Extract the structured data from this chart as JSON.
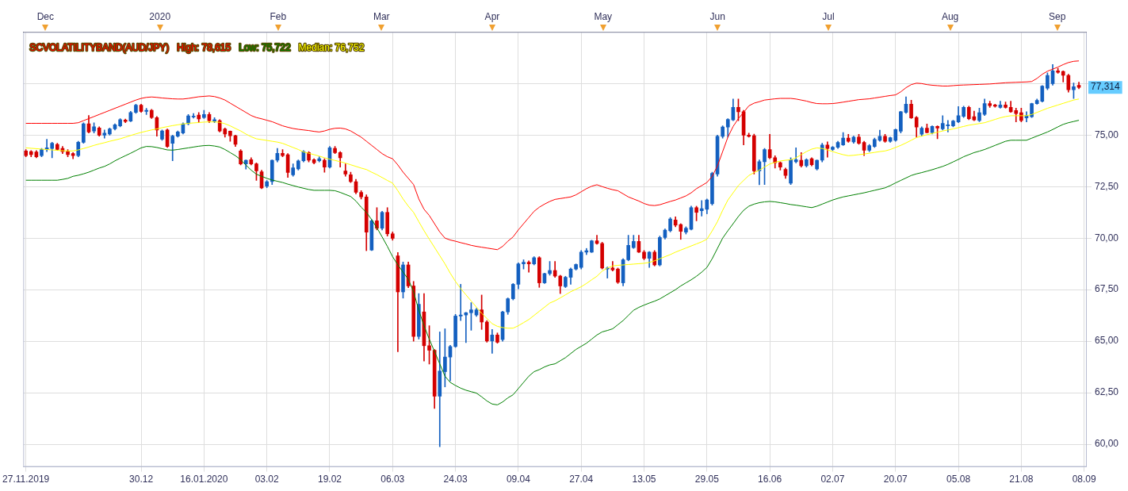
{
  "chart_data": {
    "type": "candlestick",
    "title": "SCVOLATILITYBAND(AUD/JPY)",
    "legend": "top left",
    "grid": true,
    "marker": "none",
    "categories": [
      "27.11.2019",
      null,
      null,
      null,
      null,
      null,
      null,
      null,
      null,
      null,
      null,
      null,
      null,
      null,
      null,
      null,
      null,
      null,
      null,
      null,
      null,
      null,
      "30.12",
      null,
      null,
      null,
      null,
      null,
      null,
      null,
      null,
      null,
      null,
      null,
      "16.01.2020",
      null,
      null,
      null,
      null,
      null,
      null,
      null,
      null,
      null,
      null,
      null,
      "03.02",
      null,
      null,
      null,
      null,
      null,
      null,
      null,
      null,
      null,
      null,
      null,
      "19.02",
      null,
      null,
      null,
      null,
      null,
      null,
      null,
      null,
      null,
      null,
      null,
      "06.03",
      null,
      null,
      null,
      null,
      null,
      null,
      null,
      null,
      null,
      null,
      null,
      "24.03",
      null,
      null,
      null,
      null,
      null,
      null,
      null,
      null,
      null,
      null,
      null,
      "09.04",
      null,
      null,
      null,
      null,
      null,
      null,
      null,
      null,
      null,
      null,
      null,
      "27.04",
      null,
      null,
      null,
      null,
      null,
      null,
      null,
      null,
      null,
      null,
      null,
      "13.05",
      null,
      null,
      null,
      null,
      null,
      null,
      null,
      null,
      null,
      null,
      null,
      "29.05",
      null,
      null,
      null,
      null,
      null,
      null,
      null,
      null,
      null,
      null,
      null,
      "16.06",
      null,
      null,
      null,
      null,
      null,
      null,
      null,
      null,
      null,
      null,
      null,
      "02.07",
      null,
      null,
      null,
      null,
      null,
      null,
      null,
      null,
      null,
      null,
      null,
      "20.07",
      null,
      null,
      null,
      null,
      null,
      null,
      null,
      null,
      null,
      null,
      null,
      "05.08",
      null,
      null,
      null,
      null,
      null,
      null,
      null,
      null,
      null,
      null,
      null,
      "21.08",
      null,
      null,
      null,
      null,
      null,
      null,
      null,
      null,
      null,
      null,
      null,
      "08.09"
    ],
    "ohlc": [
      [
        74.23,
        74.3,
        73.95,
        74.0
      ],
      [
        74.2,
        74.25,
        73.95,
        74.05
      ],
      [
        74.18,
        74.25,
        73.9,
        73.95
      ],
      [
        74.0,
        74.35,
        73.95,
        74.3
      ],
      [
        74.3,
        74.8,
        74.2,
        74.38
      ],
      [
        74.35,
        74.65,
        73.9,
        74.6
      ],
      [
        74.55,
        74.6,
        74.25,
        74.3
      ],
      [
        74.35,
        74.45,
        74.1,
        74.2
      ],
      [
        74.2,
        74.3,
        73.95,
        74.05
      ],
      [
        74.1,
        74.15,
        73.85,
        74.0
      ],
      [
        74.0,
        74.7,
        73.95,
        74.65
      ],
      [
        74.65,
        75.6,
        74.6,
        75.55
      ],
      [
        75.55,
        75.95,
        75.1,
        75.15
      ],
      [
        75.2,
        75.6,
        75.1,
        75.4
      ],
      [
        75.35,
        75.4,
        74.95,
        75.0
      ],
      [
        75.0,
        75.25,
        74.85,
        75.1
      ],
      [
        75.05,
        75.35,
        75.0,
        75.3
      ],
      [
        75.3,
        75.55,
        75.25,
        75.5
      ],
      [
        75.45,
        75.8,
        75.4,
        75.75
      ],
      [
        75.73,
        75.78,
        75.6,
        75.66
      ],
      [
        75.68,
        76.15,
        75.65,
        76.1
      ],
      [
        76.1,
        76.5,
        76.05,
        76.45
      ],
      [
        76.45,
        76.5,
        76.1,
        76.15
      ],
      [
        76.15,
        76.3,
        76.0,
        76.2
      ],
      [
        76.2,
        76.25,
        75.8,
        75.85
      ],
      [
        75.85,
        75.9,
        74.95,
        75.25
      ],
      [
        74.8,
        75.25,
        74.75,
        75.2
      ],
      [
        75.25,
        75.3,
        74.4,
        74.45
      ],
      [
        74.6,
        75.0,
        73.75,
        74.95
      ],
      [
        74.95,
        75.2,
        74.9,
        75.15
      ],
      [
        75.1,
        75.6,
        75.05,
        75.55
      ],
      [
        75.55,
        76.0,
        75.5,
        75.93
      ],
      [
        75.88,
        76.05,
        75.82,
        75.92
      ],
      [
        75.97,
        76.1,
        75.6,
        75.78
      ],
      [
        75.85,
        76.2,
        75.8,
        76.0
      ],
      [
        76.0,
        76.1,
        75.6,
        75.7
      ],
      [
        75.68,
        75.85,
        75.6,
        75.75
      ],
      [
        75.7,
        75.75,
        75.15,
        75.2
      ],
      [
        75.3,
        75.35,
        74.9,
        75.05
      ],
      [
        75.19,
        75.2,
        74.7,
        74.97
      ],
      [
        74.97,
        75.0,
        74.45,
        74.55
      ],
      [
        74.23,
        74.3,
        73.55,
        73.6
      ],
      [
        73.6,
        73.8,
        73.35,
        73.78
      ],
      [
        73.81,
        73.9,
        73.55,
        73.6
      ],
      [
        73.6,
        73.65,
        72.8,
        73.26
      ],
      [
        73.22,
        73.3,
        72.4,
        72.44
      ],
      [
        72.52,
        72.8,
        72.45,
        72.74
      ],
      [
        72.74,
        73.8,
        72.6,
        73.78
      ],
      [
        73.78,
        74.35,
        73.7,
        74.11
      ],
      [
        74.11,
        74.3,
        73.95,
        74.0
      ],
      [
        74.05,
        74.1,
        72.95,
        73.19
      ],
      [
        73.07,
        73.6,
        73.0,
        73.41
      ],
      [
        73.36,
        73.8,
        73.3,
        73.75
      ],
      [
        73.75,
        74.25,
        73.7,
        74.2
      ],
      [
        74.15,
        74.2,
        73.7,
        73.78
      ],
      [
        73.81,
        73.85,
        73.6,
        73.66
      ],
      [
        73.75,
        73.95,
        73.7,
        73.85
      ],
      [
        73.78,
        73.85,
        73.2,
        73.45
      ],
      [
        73.45,
        74.45,
        73.4,
        74.38
      ],
      [
        74.35,
        74.45,
        74.1,
        74.15
      ],
      [
        74.15,
        74.2,
        73.45,
        73.9
      ],
      [
        73.26,
        73.6,
        73.0,
        73.11
      ],
      [
        73.07,
        73.2,
        72.7,
        72.74
      ],
      [
        72.74,
        72.85,
        72.15,
        72.22
      ],
      [
        72.22,
        72.3,
        71.9,
        72.0
      ],
      [
        72.0,
        72.1,
        69.39,
        70.29
      ],
      [
        69.42,
        70.9,
        69.4,
        70.84
      ],
      [
        70.84,
        71.48,
        70.4,
        70.48
      ],
      [
        70.48,
        71.3,
        70.4,
        71.25
      ],
      [
        71.25,
        71.48,
        70.1,
        70.21
      ],
      [
        70.21,
        70.3,
        69.9,
        69.99
      ],
      [
        69.14,
        69.3,
        64.49,
        67.39
      ],
      [
        67.39,
        68.84,
        67.09,
        68.7
      ],
      [
        68.7,
        68.84,
        67.6,
        67.68
      ],
      [
        67.68,
        67.9,
        65.0,
        65.23
      ],
      [
        65.23,
        67.31,
        65.1,
        66.79
      ],
      [
        66.42,
        67.31,
        64.04,
        64.78
      ],
      [
        64.78,
        65.75,
        63.89,
        64.56
      ],
      [
        64.56,
        64.6,
        61.74,
        62.33
      ],
      [
        62.33,
        65.45,
        59.88,
        63.55
      ],
      [
        63.52,
        65.6,
        62.78,
        64.23
      ],
      [
        64.23,
        64.8,
        63.07,
        64.74
      ],
      [
        64.74,
        66.3,
        64.7,
        66.22
      ],
      [
        66.22,
        67.76,
        66.0,
        66.27
      ],
      [
        66.27,
        66.4,
        64.93,
        66.38
      ],
      [
        66.38,
        66.87,
        65.53,
        66.52
      ],
      [
        66.27,
        66.6,
        66.2,
        66.52
      ],
      [
        66.52,
        67.24,
        65.57,
        65.93
      ],
      [
        65.93,
        66.0,
        64.95,
        65.01
      ],
      [
        65.01,
        65.57,
        64.41,
        65.3
      ],
      [
        65.3,
        65.4,
        64.9,
        64.95
      ],
      [
        65.08,
        66.45,
        65.0,
        66.42
      ],
      [
        66.42,
        67.1,
        66.3,
        67.06
      ],
      [
        67.06,
        67.8,
        67.0,
        67.76
      ],
      [
        67.76,
        68.8,
        67.54,
        68.75
      ],
      [
        68.75,
        68.95,
        68.5,
        68.83
      ],
      [
        68.83,
        68.9,
        68.35,
        68.75
      ],
      [
        68.75,
        69.1,
        68.7,
        69.05
      ],
      [
        69.05,
        69.1,
        67.61,
        67.83
      ],
      [
        67.83,
        68.3,
        67.8,
        68.28
      ],
      [
        68.28,
        68.87,
        68.2,
        68.43
      ],
      [
        68.43,
        68.87,
        68.1,
        68.16
      ],
      [
        68.16,
        68.2,
        67.31,
        67.68
      ],
      [
        67.65,
        68.15,
        67.6,
        68.1
      ],
      [
        68.1,
        68.55,
        67.76,
        68.5
      ],
      [
        68.5,
        68.75,
        68.45,
        68.72
      ],
      [
        68.58,
        69.4,
        68.5,
        69.32
      ],
      [
        69.32,
        69.5,
        69.2,
        69.39
      ],
      [
        69.32,
        69.9,
        69.3,
        69.87
      ],
      [
        69.87,
        70.14,
        69.7,
        69.74
      ],
      [
        69.74,
        69.8,
        68.5,
        68.55
      ],
      [
        68.5,
        68.6,
        68.06,
        68.55
      ],
      [
        68.55,
        68.87,
        68.4,
        68.46
      ],
      [
        68.5,
        68.55,
        67.8,
        67.86
      ],
      [
        67.83,
        69.0,
        67.68,
        68.95
      ],
      [
        68.95,
        70.14,
        68.9,
        69.65
      ],
      [
        69.54,
        70.14,
        69.5,
        69.84
      ],
      [
        69.84,
        70.14,
        69.3,
        69.32
      ],
      [
        69.32,
        69.4,
        68.95,
        69.02
      ],
      [
        69.02,
        69.35,
        68.58,
        69.32
      ],
      [
        69.32,
        69.4,
        68.65,
        68.7
      ],
      [
        68.7,
        70.1,
        68.65,
        70.03
      ],
      [
        70.03,
        70.45,
        69.95,
        70.39
      ],
      [
        70.36,
        71.0,
        70.3,
        70.93
      ],
      [
        70.88,
        71.03,
        70.55,
        70.63
      ],
      [
        70.66,
        70.7,
        69.94,
        70.33
      ],
      [
        70.29,
        70.55,
        70.2,
        70.48
      ],
      [
        70.43,
        71.55,
        70.4,
        71.48
      ],
      [
        71.48,
        71.55,
        70.84,
        71.25
      ],
      [
        71.33,
        71.82,
        71.07,
        71.43
      ],
      [
        71.4,
        71.9,
        71.18,
        71.85
      ],
      [
        71.67,
        73.2,
        71.6,
        73.14
      ],
      [
        73.11,
        75.0,
        73.0,
        74.94
      ],
      [
        74.94,
        75.45,
        74.85,
        75.39
      ],
      [
        75.39,
        75.8,
        74.9,
        75.76
      ],
      [
        75.74,
        76.75,
        75.7,
        76.35
      ],
      [
        76.35,
        76.75,
        75.7,
        76.13
      ],
      [
        76.13,
        76.2,
        74.52,
        75.0
      ],
      [
        75.0,
        75.1,
        74.9,
        74.94
      ],
      [
        74.97,
        75.05,
        73.11,
        73.26
      ],
      [
        73.26,
        73.8,
        72.59,
        73.71
      ],
      [
        73.71,
        74.35,
        72.6,
        74.3
      ],
      [
        74.3,
        75.04,
        73.85,
        73.9
      ],
      [
        73.9,
        74.0,
        73.4,
        73.66
      ],
      [
        73.66,
        73.7,
        73.3,
        73.45
      ],
      [
        73.33,
        73.4,
        72.9,
        73.04
      ],
      [
        72.67,
        73.9,
        72.6,
        73.81
      ],
      [
        73.71,
        74.38,
        73.65,
        73.81
      ],
      [
        73.78,
        74.15,
        73.45,
        73.51
      ],
      [
        73.51,
        73.85,
        73.45,
        73.81
      ],
      [
        73.85,
        73.9,
        73.5,
        73.56
      ],
      [
        73.36,
        73.8,
        73.3,
        73.78
      ],
      [
        73.78,
        74.6,
        73.7,
        74.52
      ],
      [
        74.52,
        74.67,
        73.93,
        74.35
      ],
      [
        74.3,
        74.45,
        74.25,
        74.41
      ],
      [
        74.41,
        74.7,
        74.35,
        74.64
      ],
      [
        74.52,
        75.12,
        74.5,
        74.85
      ],
      [
        74.85,
        75.04,
        74.65,
        74.7
      ],
      [
        74.67,
        74.95,
        74.6,
        74.9
      ],
      [
        74.9,
        75.04,
        74.55,
        74.6
      ],
      [
        74.64,
        74.7,
        74.0,
        74.26
      ],
      [
        74.26,
        74.55,
        74.2,
        74.49
      ],
      [
        74.45,
        74.85,
        74.4,
        74.79
      ],
      [
        74.75,
        75.24,
        74.7,
        74.94
      ],
      [
        74.94,
        75.04,
        74.65,
        74.7
      ],
      [
        74.7,
        74.9,
        74.65,
        74.87
      ],
      [
        74.75,
        75.3,
        74.7,
        75.27
      ],
      [
        75.19,
        76.15,
        75.1,
        76.13
      ],
      [
        76.1,
        76.86,
        76.05,
        76.5
      ],
      [
        76.5,
        76.69,
        75.8,
        75.83
      ],
      [
        75.86,
        75.9,
        74.9,
        75.39
      ],
      [
        75.04,
        75.4,
        74.95,
        75.34
      ],
      [
        75.34,
        75.54,
        75.1,
        75.12
      ],
      [
        75.12,
        75.45,
        75.05,
        75.42
      ],
      [
        75.42,
        75.45,
        74.82,
        75.34
      ],
      [
        75.3,
        75.94,
        75.25,
        75.57
      ],
      [
        75.45,
        75.71,
        75.15,
        75.5
      ],
      [
        75.45,
        75.72,
        75.4,
        75.68
      ],
      [
        75.64,
        76.38,
        75.6,
        75.94
      ],
      [
        75.91,
        76.4,
        75.85,
        76.35
      ],
      [
        76.35,
        76.4,
        75.75,
        75.79
      ],
      [
        75.89,
        76.16,
        75.7,
        75.74
      ],
      [
        75.71,
        76.31,
        75.65,
        76.09
      ],
      [
        76.01,
        76.75,
        75.95,
        76.53
      ],
      [
        76.53,
        76.64,
        76.34,
        76.43
      ],
      [
        76.46,
        76.5,
        76.35,
        76.4
      ],
      [
        76.34,
        76.64,
        76.3,
        76.46
      ],
      [
        76.46,
        76.61,
        76.3,
        76.34
      ],
      [
        76.35,
        76.64,
        76.1,
        76.13
      ],
      [
        76.19,
        76.31,
        75.64,
        76.04
      ],
      [
        76.09,
        76.31,
        75.64,
        75.71
      ],
      [
        75.83,
        76.13,
        75.64,
        75.94
      ],
      [
        75.89,
        76.55,
        75.85,
        76.53
      ],
      [
        76.53,
        76.75,
        76.5,
        76.68
      ],
      [
        76.64,
        77.4,
        76.6,
        77.38
      ],
      [
        77.28,
        78.02,
        77.2,
        77.9
      ],
      [
        77.5,
        78.42,
        77.42,
        78.12
      ],
      [
        78.12,
        78.24,
        78.0,
        78.05
      ],
      [
        78.09,
        78.12,
        77.57,
        77.9
      ],
      [
        77.9,
        77.95,
        77.08,
        77.2
      ],
      [
        77.2,
        77.53,
        76.78,
        77.35
      ],
      [
        77.41,
        77.57,
        77.25,
        77.314
      ],
      null
    ],
    "colors": [
      "#d40000",
      "#d40000",
      "#d40000",
      "#1460c0",
      "#1460c0",
      "#1460c0",
      "#d40000",
      "#d40000",
      "#d40000",
      "#d40000",
      "#1460c0",
      "#1460c0",
      "#d40000",
      "#1460c0",
      "#d40000",
      "#1460c0",
      "#1460c0",
      "#1460c0",
      "#1460c0",
      "#d40000",
      "#1460c0",
      "#1460c0",
      "#d40000",
      "#1460c0",
      "#d40000",
      "#d40000",
      "#1460c0",
      "#d40000",
      "#1460c0",
      "#1460c0",
      "#1460c0",
      "#1460c0",
      "#1460c0",
      "#d40000",
      "#1460c0",
      "#d40000",
      "#1460c0",
      "#d40000",
      "#d40000",
      "#d40000",
      "#d40000",
      "#d40000",
      "#1460c0",
      "#d40000",
      "#d40000",
      "#d40000",
      "#1460c0",
      "#1460c0",
      "#1460c0",
      "#d40000",
      "#d40000",
      "#1460c0",
      "#1460c0",
      "#1460c0",
      "#d40000",
      "#d40000",
      "#1460c0",
      "#d40000",
      "#1460c0",
      "#d40000",
      "#d40000",
      "#d40000",
      "#d40000",
      "#d40000",
      "#d40000",
      "#d40000",
      "#1460c0",
      "#d40000",
      "#1460c0",
      "#d40000",
      "#d40000",
      "#d40000",
      "#1460c0",
      "#d40000",
      "#d40000",
      "#1460c0",
      "#d40000",
      "#d40000",
      "#d40000",
      "#1460c0",
      "#1460c0",
      "#1460c0",
      "#1460c0",
      "#1460c0",
      "#1460c0",
      "#1460c0",
      "#1460c0",
      "#d40000",
      "#d40000",
      "#1460c0",
      "#d40000",
      "#1460c0",
      "#1460c0",
      "#1460c0",
      "#1460c0",
      "#1460c0",
      "#d40000",
      "#1460c0",
      "#d40000",
      "#1460c0",
      "#1460c0",
      "#d40000",
      "#d40000",
      "#1460c0",
      "#1460c0",
      "#1460c0",
      "#1460c0",
      "#1460c0",
      "#1460c0",
      "#d40000",
      "#d40000",
      "#1460c0",
      "#d40000",
      "#d40000",
      "#1460c0",
      "#1460c0",
      "#1460c0",
      "#d40000",
      "#d40000",
      "#1460c0",
      "#d40000",
      "#1460c0",
      "#1460c0",
      "#1460c0",
      "#d40000",
      "#d40000",
      "#1460c0",
      "#1460c0",
      "#d40000",
      "#1460c0",
      "#1460c0",
      "#1460c0",
      "#1460c0",
      "#1460c0",
      "#1460c0",
      "#1460c0",
      "#d40000",
      "#d40000",
      "#d40000",
      "#d40000",
      "#1460c0",
      "#1460c0",
      "#d40000",
      "#d40000",
      "#d40000",
      "#d40000",
      "#1460c0",
      "#1460c0",
      "#d40000",
      "#1460c0",
      "#d40000",
      "#1460c0",
      "#1460c0",
      "#d40000",
      "#1460c0",
      "#1460c0",
      "#1460c0",
      "#d40000",
      "#1460c0",
      "#d40000",
      "#d40000",
      "#1460c0",
      "#1460c0",
      "#1460c0",
      "#d40000",
      "#1460c0",
      "#1460c0",
      "#1460c0",
      "#1460c0",
      "#d40000",
      "#d40000",
      "#1460c0",
      "#d40000",
      "#1460c0",
      "#d40000",
      "#1460c0",
      "#1460c0",
      "#1460c0",
      "#1460c0",
      "#1460c0",
      "#d40000",
      "#d40000",
      "#1460c0",
      "#1460c0",
      "#d40000",
      "#d40000",
      "#1460c0",
      "#d40000",
      "#d40000",
      "#d40000",
      "#d40000",
      "#1460c0",
      "#1460c0",
      "#1460c0",
      "#1460c0",
      "#1460c0",
      "#1460c0",
      "#d40000",
      "#d40000",
      "#d40000",
      "#1460c0",
      "#d40000",
      null
    ],
    "series": [
      {
        "name": "High: 78,615",
        "type": "line",
        "color": "#ff0000",
        "values": [
          75.57,
          75.57,
          75.57,
          75.57,
          75.57,
          75.57,
          75.57,
          75.57,
          75.57,
          75.57,
          75.6,
          75.7,
          75.8,
          75.9,
          76.0,
          76.1,
          76.2,
          76.3,
          76.4,
          76.5,
          76.6,
          76.7,
          76.78,
          76.83,
          76.85,
          76.83,
          76.8,
          76.78,
          76.76,
          76.75,
          76.75,
          76.78,
          76.82,
          76.86,
          76.88,
          76.9,
          76.87,
          76.8,
          76.7,
          76.55,
          76.4,
          76.25,
          76.1,
          75.95,
          75.85,
          75.79,
          75.72,
          75.65,
          75.55,
          75.45,
          75.38,
          75.32,
          75.28,
          75.25,
          75.22,
          75.18,
          75.15,
          75.2,
          75.28,
          75.33,
          75.34,
          75.3,
          75.2,
          75.05,
          74.9,
          74.7,
          74.5,
          74.3,
          74.1,
          73.95,
          73.85,
          73.55,
          73.2,
          72.9,
          72.6,
          71.9,
          71.4,
          71.1,
          70.7,
          70.3,
          70.0,
          69.91,
          69.85,
          69.78,
          69.72,
          69.65,
          69.6,
          69.56,
          69.52,
          69.48,
          69.44,
          69.6,
          69.85,
          70.06,
          70.4,
          70.7,
          71.0,
          71.3,
          71.5,
          71.65,
          71.78,
          71.88,
          71.92,
          71.96,
          72.0,
          72.1,
          72.25,
          72.4,
          72.52,
          72.59,
          72.5,
          72.42,
          72.35,
          72.3,
          72.15,
          72.0,
          71.9,
          71.8,
          71.68,
          71.6,
          71.58,
          71.62,
          71.7,
          71.78,
          71.85,
          71.95,
          72.05,
          72.2,
          72.4,
          72.55,
          72.7,
          73.0,
          73.5,
          74.2,
          74.9,
          75.42,
          75.8,
          76.1,
          76.42,
          76.55,
          76.62,
          76.7,
          76.73,
          76.76,
          76.78,
          76.78,
          76.78,
          76.75,
          76.7,
          76.65,
          76.58,
          76.53,
          76.52,
          76.52,
          76.53,
          76.56,
          76.6,
          76.64,
          76.68,
          76.72,
          76.74,
          76.76,
          76.8,
          76.84,
          76.88,
          76.92,
          76.95,
          77.1,
          77.3,
          77.45,
          77.52,
          77.5,
          77.45,
          77.42,
          77.4,
          77.38,
          77.38,
          77.4,
          77.42,
          77.43,
          77.44,
          77.45,
          77.46,
          77.47,
          77.48,
          77.5,
          77.52,
          77.54,
          77.55,
          77.56,
          77.57,
          77.58,
          77.6,
          77.75,
          77.95,
          78.1,
          78.2,
          78.3,
          78.42,
          78.52,
          78.58,
          78.6,
          null
        ]
      },
      {
        "name": "Low: 75,722",
        "type": "line",
        "color": "#008000",
        "values": [
          72.81,
          72.81,
          72.81,
          72.81,
          72.81,
          72.81,
          72.81,
          72.85,
          72.9,
          73.0,
          73.05,
          73.12,
          73.2,
          73.3,
          73.4,
          73.48,
          73.6,
          73.75,
          73.88,
          74.0,
          74.12,
          74.25,
          74.38,
          74.45,
          74.44,
          74.4,
          74.34,
          74.28,
          74.27,
          74.3,
          74.34,
          74.38,
          74.42,
          74.46,
          74.49,
          74.5,
          74.47,
          74.42,
          74.3,
          74.15,
          74.0,
          73.8,
          73.55,
          73.3,
          73.1,
          73.0,
          72.9,
          72.82,
          72.76,
          72.7,
          72.62,
          72.55,
          72.48,
          72.42,
          72.36,
          72.32,
          72.32,
          72.32,
          72.32,
          72.3,
          72.22,
          72.12,
          72.02,
          71.8,
          71.5,
          71.25,
          70.9,
          70.5,
          70.06,
          69.6,
          69.1,
          68.7,
          68.35,
          68.0,
          67.4,
          66.5,
          65.75,
          65.1,
          64.5,
          63.9,
          63.3,
          63.0,
          62.85,
          62.72,
          62.62,
          62.55,
          62.48,
          62.3,
          62.1,
          61.95,
          61.91,
          62.05,
          62.25,
          62.4,
          62.7,
          63.0,
          63.3,
          63.52,
          63.62,
          63.75,
          63.85,
          63.9,
          64.05,
          64.2,
          64.4,
          64.6,
          64.75,
          64.9,
          65.1,
          65.3,
          65.45,
          65.52,
          65.6,
          65.8,
          66.0,
          66.25,
          66.5,
          66.64,
          66.75,
          66.85,
          66.94,
          67.05,
          67.2,
          67.35,
          67.5,
          67.68,
          67.83,
          67.98,
          68.15,
          68.35,
          68.58,
          69.0,
          69.5,
          70.0,
          70.36,
          70.7,
          71.05,
          71.35,
          71.55,
          71.65,
          71.72,
          71.76,
          71.78,
          71.76,
          71.72,
          71.68,
          71.63,
          71.6,
          71.56,
          71.52,
          71.48,
          71.55,
          71.65,
          71.75,
          71.85,
          71.93,
          72.0,
          72.05,
          72.1,
          72.15,
          72.2,
          72.26,
          72.32,
          72.38,
          72.44,
          72.55,
          72.68,
          72.8,
          72.92,
          73.04,
          73.12,
          73.18,
          73.25,
          73.32,
          73.4,
          73.48,
          73.58,
          73.7,
          73.82,
          73.95,
          74.05,
          74.15,
          74.22,
          74.3,
          74.4,
          74.5,
          74.6,
          74.7,
          74.75,
          74.75,
          74.75,
          74.75,
          74.85,
          74.95,
          75.05,
          75.15,
          75.27,
          75.4,
          75.52,
          75.6,
          75.66,
          75.72,
          null
        ]
      },
      {
        "name": "Median: 76,752",
        "type": "line",
        "color": "#ffff00",
        "values": [
          74.38,
          74.36,
          74.34,
          74.32,
          74.3,
          74.28,
          74.26,
          74.24,
          74.23,
          74.23,
          74.28,
          74.35,
          74.42,
          74.5,
          74.57,
          74.63,
          74.7,
          74.76,
          74.82,
          74.9,
          74.98,
          75.06,
          75.13,
          75.19,
          75.25,
          75.3,
          75.36,
          75.41,
          75.46,
          75.5,
          75.54,
          75.57,
          75.59,
          75.61,
          75.63,
          75.64,
          75.64,
          75.62,
          75.55,
          75.45,
          75.32,
          75.2,
          75.05,
          74.92,
          74.82,
          74.78,
          74.74,
          74.7,
          74.66,
          74.6,
          74.5,
          74.4,
          74.3,
          74.18,
          74.12,
          74.05,
          73.98,
          73.9,
          73.83,
          73.77,
          73.71,
          73.64,
          73.56,
          73.48,
          73.4,
          73.33,
          73.2,
          73.08,
          72.94,
          72.8,
          72.67,
          72.3,
          71.9,
          71.55,
          71.25,
          70.8,
          70.36,
          69.95,
          69.55,
          69.15,
          68.75,
          68.3,
          67.9,
          67.55,
          67.25,
          66.95,
          66.65,
          66.35,
          66.1,
          65.85,
          65.72,
          65.66,
          65.63,
          65.63,
          65.75,
          65.9,
          66.05,
          66.25,
          66.45,
          66.65,
          66.85,
          66.96,
          67.1,
          67.25,
          67.4,
          67.52,
          67.64,
          67.8,
          67.98,
          68.15,
          68.4,
          68.55,
          68.65,
          68.68,
          68.7,
          68.72,
          68.74,
          68.76,
          68.78,
          68.82,
          68.9,
          69.0,
          69.1,
          69.2,
          69.32,
          69.42,
          69.52,
          69.62,
          69.72,
          69.82,
          69.95,
          70.35,
          70.8,
          71.35,
          71.85,
          72.2,
          72.55,
          72.8,
          73.04,
          73.18,
          73.3,
          73.45,
          73.6,
          73.68,
          73.74,
          73.78,
          73.8,
          73.9,
          74.05,
          74.2,
          74.32,
          74.38,
          74.35,
          74.28,
          74.2,
          74.12,
          74.05,
          74.0,
          74.02,
          74.05,
          74.08,
          74.12,
          74.16,
          74.2,
          74.23,
          74.3,
          74.4,
          74.5,
          74.62,
          74.75,
          74.88,
          74.95,
          75.02,
          75.08,
          75.14,
          75.2,
          75.25,
          75.3,
          75.36,
          75.42,
          75.48,
          75.52,
          75.56,
          75.6,
          75.68,
          75.76,
          75.84,
          75.9,
          75.94,
          75.94,
          75.94,
          75.94,
          76.0,
          76.1,
          76.2,
          76.3,
          76.38,
          76.46,
          76.54,
          76.62,
          76.7,
          76.75,
          null
        ]
      }
    ],
    "ylim": [
      58.9,
      80.0
    ],
    "yticks": [
      {
        "value": 60,
        "label": "60,00"
      },
      {
        "value": 62.5,
        "label": "62,50"
      },
      {
        "value": 65,
        "label": "65,00"
      },
      {
        "value": 67.5,
        "label": "67,50"
      },
      {
        "value": 70,
        "label": "70,00"
      },
      {
        "value": 72.5,
        "label": "72,50"
      },
      {
        "value": 75,
        "label": "75,00"
      },
      {
        "value": 77.5,
        "label": null
      }
    ],
    "x2lim": [
      "2019-11-26",
      "2020-09-09"
    ],
    "x2ticks": [
      {
        "value": "2019-12-02",
        "label": "Dec"
      },
      {
        "value": "2020-01-02",
        "label": "2020"
      },
      {
        "value": "2020-02-03",
        "label": "Feb"
      },
      {
        "value": "2020-03-02",
        "label": "Mar"
      },
      {
        "value": "2020-04-01",
        "label": "Apr"
      },
      {
        "value": "2020-05-01",
        "label": "May"
      },
      {
        "value": "2020-06-01",
        "label": "Jun"
      },
      {
        "value": "2020-07-01",
        "label": "Jul"
      },
      {
        "value": "2020-08-03",
        "label": "Aug"
      },
      {
        "value": "2020-09-01",
        "label": "Sep"
      }
    ],
    "annotations": [
      {
        "text": "77,314",
        "y": 77.314
      }
    ]
  }
}
